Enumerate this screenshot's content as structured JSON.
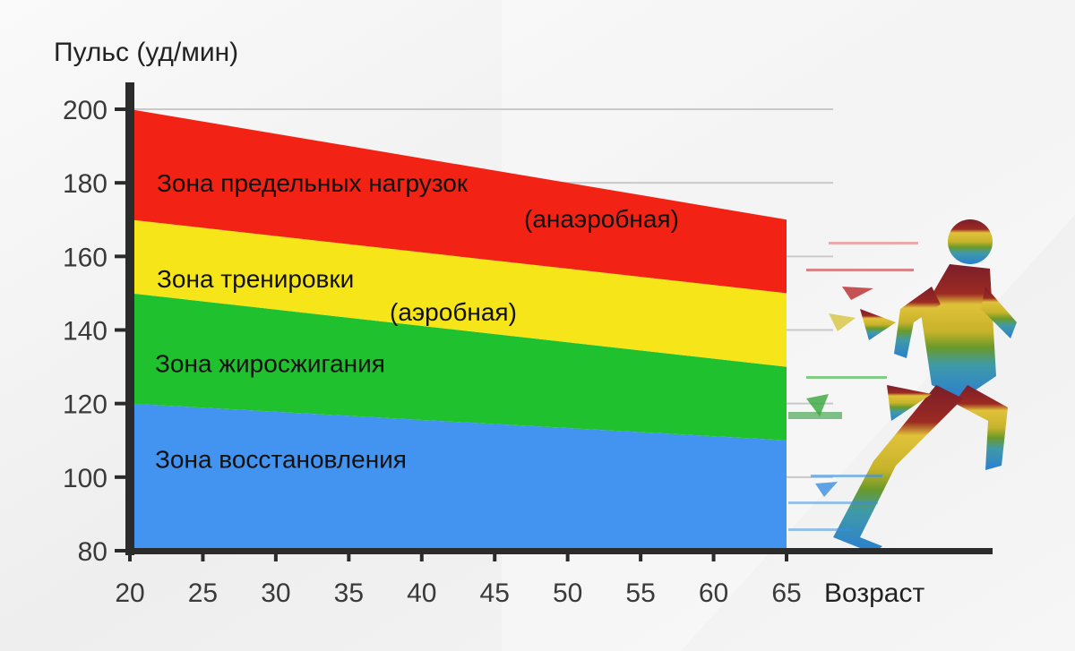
{
  "chart_data": {
    "type": "area",
    "title": "",
    "ylabel": "Пульс (уд/мин)",
    "xlabel": "Возраст",
    "xlim": [
      20,
      65
    ],
    "ylim": [
      80,
      200
    ],
    "x_ticks": [
      20,
      25,
      30,
      35,
      40,
      45,
      50,
      55,
      60,
      65
    ],
    "y_ticks": [
      80,
      100,
      120,
      140,
      160,
      180,
      200
    ],
    "grid": "horizontal",
    "x": [
      20,
      65
    ],
    "zones": [
      {
        "name": "Зона восстановления",
        "lower": [
          80,
          80
        ],
        "upper": [
          120,
          110
        ],
        "color": "#4294f0"
      },
      {
        "name": "Зона жиросжигания",
        "lower": [
          120,
          110
        ],
        "upper": [
          150,
          130
        ],
        "color": "#1fc22e"
      },
      {
        "name": "Зона тренировки",
        "sublabel": "(аэробная)",
        "lower": [
          150,
          130
        ],
        "upper": [
          170,
          150
        ],
        "color": "#f6e619"
      },
      {
        "name": "Зона предельных нагрузок",
        "sublabel": "(анаэробная)",
        "lower": [
          170,
          150
        ],
        "upper": [
          200,
          170
        ],
        "color": "#f22214"
      }
    ],
    "label_positions": [
      {
        "x": 21,
        "y": 180
      },
      {
        "x": 21,
        "y": 154
      },
      {
        "x": 21,
        "y": 131
      },
      {
        "x": 21,
        "y": 105
      }
    ]
  },
  "decoration": {
    "runner": "runner-silhouette"
  }
}
